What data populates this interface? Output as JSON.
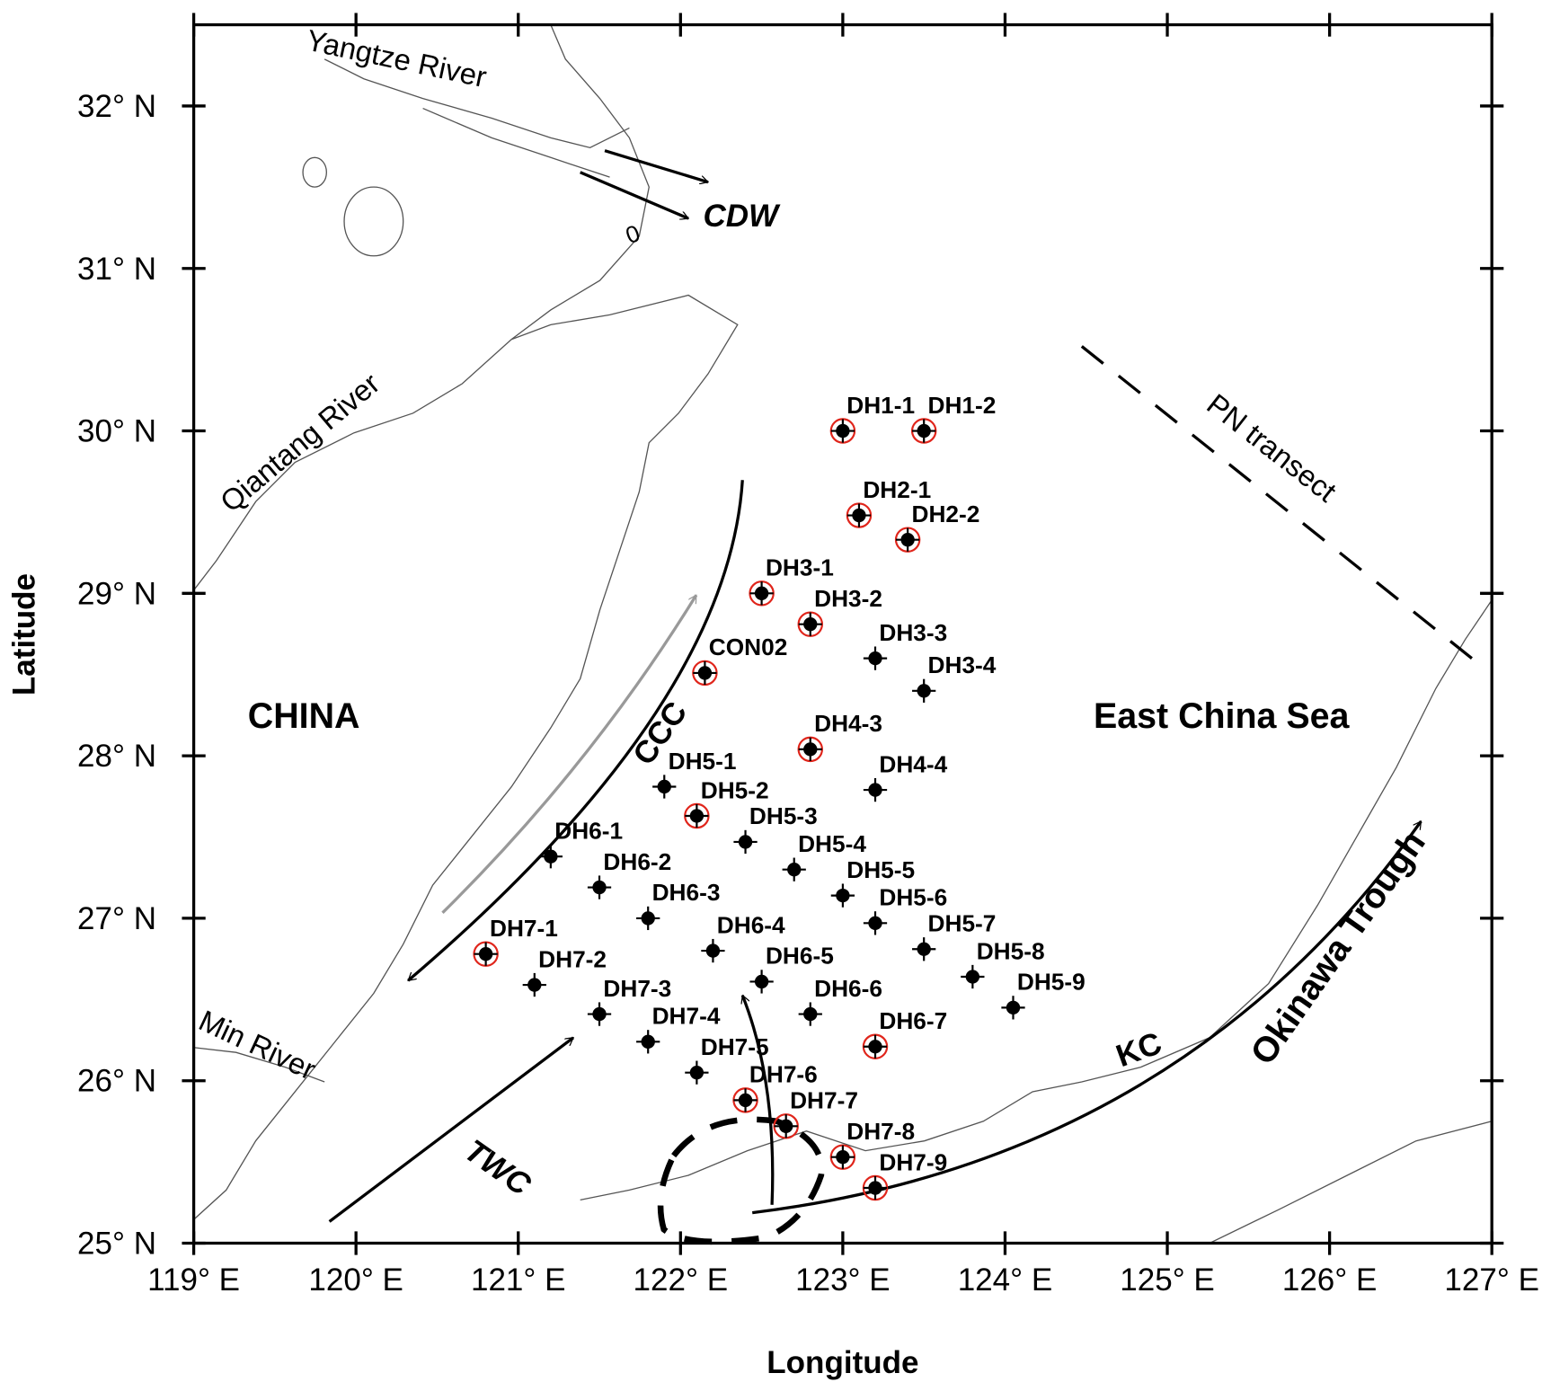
{
  "chart_data": {
    "type": "map",
    "x_label": "Longitude",
    "y_label": "Latitude",
    "xlim": [
      119,
      127
    ],
    "ylim": [
      25,
      32.5
    ],
    "xticks": [
      {
        "value": 119,
        "label": "119° E"
      },
      {
        "value": 120,
        "label": "120° E"
      },
      {
        "value": 121,
        "label": "121° E"
      },
      {
        "value": 122,
        "label": "122° E"
      },
      {
        "value": 123,
        "label": "123° E"
      },
      {
        "value": 124,
        "label": "124° E"
      },
      {
        "value": 125,
        "label": "125° E"
      },
      {
        "value": 126,
        "label": "126° E"
      },
      {
        "value": 127,
        "label": "127° E"
      }
    ],
    "yticks": [
      {
        "value": 25,
        "label": "25° N"
      },
      {
        "value": 26,
        "label": "26° N"
      },
      {
        "value": 27,
        "label": "27° N"
      },
      {
        "value": 28,
        "label": "28° N"
      },
      {
        "value": 29,
        "label": "29° N"
      },
      {
        "value": 30,
        "label": "30° N"
      },
      {
        "value": 31,
        "label": "31° N"
      },
      {
        "value": 32,
        "label": "32° N"
      }
    ],
    "annotations": [
      "Yangtze River",
      "CDW",
      "0",
      "Qiantang River",
      "CHINA",
      "CCC",
      "East China Sea",
      "PN transect",
      "Min River",
      "TWC",
      "KC",
      "Okinawa Trough"
    ],
    "points": [
      {
        "label": "DH1-1",
        "x": 123.0,
        "y": 30.0,
        "circled": true
      },
      {
        "label": "DH1-2",
        "x": 123.5,
        "y": 30.0,
        "circled": true
      },
      {
        "label": "DH2-1",
        "x": 123.1,
        "y": 29.48,
        "circled": true
      },
      {
        "label": "DH2-2",
        "x": 123.4,
        "y": 29.33,
        "circled": true
      },
      {
        "label": "DH3-1",
        "x": 122.5,
        "y": 29.0,
        "circled": true
      },
      {
        "label": "DH3-2",
        "x": 122.8,
        "y": 28.81,
        "circled": true
      },
      {
        "label": "DH3-3",
        "x": 123.2,
        "y": 28.6,
        "circled": false
      },
      {
        "label": "DH3-4",
        "x": 123.5,
        "y": 28.4,
        "circled": false
      },
      {
        "label": "CON02",
        "x": 122.15,
        "y": 28.51,
        "circled": true
      },
      {
        "label": "DH4-3",
        "x": 122.8,
        "y": 28.04,
        "circled": true
      },
      {
        "label": "DH4-4",
        "x": 123.2,
        "y": 27.79,
        "circled": false
      },
      {
        "label": "DH5-1",
        "x": 121.9,
        "y": 27.81,
        "circled": false
      },
      {
        "label": "DH5-2",
        "x": 122.1,
        "y": 27.63,
        "circled": true
      },
      {
        "label": "DH5-3",
        "x": 122.4,
        "y": 27.47,
        "circled": false
      },
      {
        "label": "DH5-4",
        "x": 122.7,
        "y": 27.3,
        "circled": false
      },
      {
        "label": "DH5-5",
        "x": 123.0,
        "y": 27.14,
        "circled": false
      },
      {
        "label": "DH5-6",
        "x": 123.2,
        "y": 26.97,
        "circled": false
      },
      {
        "label": "DH5-7",
        "x": 123.5,
        "y": 26.81,
        "circled": false
      },
      {
        "label": "DH5-8",
        "x": 123.8,
        "y": 26.64,
        "circled": false
      },
      {
        "label": "DH5-9",
        "x": 124.05,
        "y": 26.45,
        "circled": false
      },
      {
        "label": "DH6-1",
        "x": 121.2,
        "y": 27.38,
        "circled": false
      },
      {
        "label": "DH6-2",
        "x": 121.5,
        "y": 27.19,
        "circled": false
      },
      {
        "label": "DH6-3",
        "x": 121.8,
        "y": 27.0,
        "circled": false
      },
      {
        "label": "DH6-4",
        "x": 122.2,
        "y": 26.8,
        "circled": false
      },
      {
        "label": "DH6-5",
        "x": 122.5,
        "y": 26.61,
        "circled": false
      },
      {
        "label": "DH6-6",
        "x": 122.8,
        "y": 26.41,
        "circled": false
      },
      {
        "label": "DH6-7",
        "x": 123.2,
        "y": 26.21,
        "circled": true
      },
      {
        "label": "DH7-1",
        "x": 120.8,
        "y": 26.78,
        "circled": true
      },
      {
        "label": "DH7-2",
        "x": 121.1,
        "y": 26.59,
        "circled": false
      },
      {
        "label": "DH7-3",
        "x": 121.5,
        "y": 26.41,
        "circled": false
      },
      {
        "label": "DH7-4",
        "x": 121.8,
        "y": 26.24,
        "circled": false
      },
      {
        "label": "DH7-5",
        "x": 122.1,
        "y": 26.05,
        "circled": false
      },
      {
        "label": "DH7-6",
        "x": 122.4,
        "y": 25.88,
        "circled": true
      },
      {
        "label": "DH7-7",
        "x": 122.65,
        "y": 25.72,
        "circled": true
      },
      {
        "label": "DH7-8",
        "x": 123.0,
        "y": 25.53,
        "circled": true
      },
      {
        "label": "DH7-9",
        "x": 123.2,
        "y": 25.34,
        "circled": true
      }
    ]
  }
}
